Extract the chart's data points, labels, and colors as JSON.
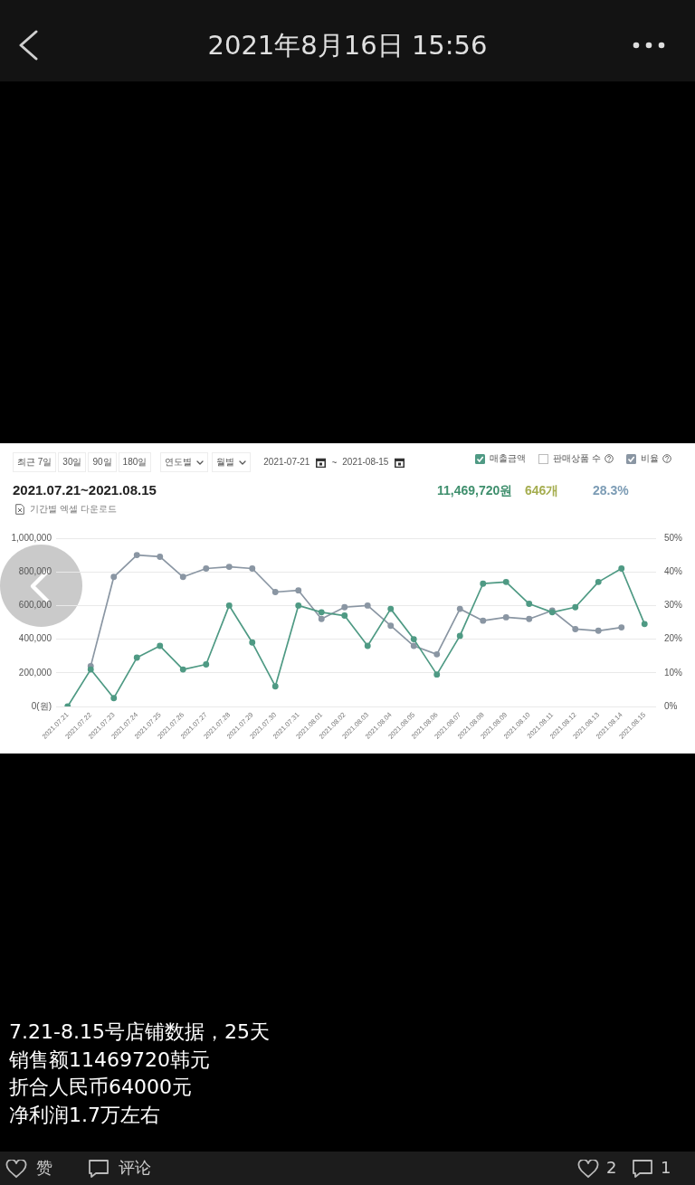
{
  "chart_data": {
    "type": "line",
    "title": "2021.07.21~2021.08.15",
    "categories": [
      "2021.07.21",
      "2021.07.22",
      "2021.07.23",
      "2021.07.24",
      "2021.07.25",
      "2021.07.26",
      "2021.07.27",
      "2021.07.28",
      "2021.07.29",
      "2021.07.30",
      "2021.07.31",
      "2021.08.01",
      "2021.08.02",
      "2021.08.03",
      "2021.08.04",
      "2021.08.05",
      "2021.08.06",
      "2021.08.07",
      "2021.08.08",
      "2021.08.09",
      "2021.08.10",
      "2021.08.11",
      "2021.08.12",
      "2021.08.13",
      "2021.08.14",
      "2021.08.15"
    ],
    "series": [
      {
        "name": "매출금액",
        "color": "#4f9a84",
        "axis": "y",
        "values": [
          0,
          220000,
          50000,
          290000,
          360000,
          220000,
          250000,
          600000,
          380000,
          120000,
          600000,
          560000,
          540000,
          360000,
          580000,
          400000,
          190000,
          420000,
          730000,
          740000,
          610000,
          560000,
          590000,
          740000,
          820000,
          490000
        ]
      },
      {
        "name": "비율",
        "color": "#8a96a3",
        "axis": "y2",
        "values": [
          null,
          12,
          38.5,
          45,
          44.5,
          38.5,
          41,
          41.5,
          41,
          34,
          34.5,
          26,
          29.5,
          30,
          24,
          18,
          15.5,
          29,
          25.5,
          26.5,
          26,
          28.5,
          23,
          22.5,
          23.5,
          null
        ]
      }
    ],
    "ylim": [
      0,
      1000000
    ],
    "yticks": [
      {
        "value": 0,
        "label": "0(원)"
      },
      {
        "value": 200000,
        "label": "200,000"
      },
      {
        "value": 400000,
        "label": "400,000"
      },
      {
        "value": 600000,
        "label": "600,000"
      },
      {
        "value": 800000,
        "label": "800,000"
      },
      {
        "value": 1000000,
        "label": "1,000,000"
      }
    ],
    "y2lim": [
      0,
      50
    ],
    "y2ticks": [
      {
        "value": 0,
        "label": "0%"
      },
      {
        "value": 10,
        "label": "10%"
      },
      {
        "value": 20,
        "label": "20%"
      },
      {
        "value": 30,
        "label": "30%"
      },
      {
        "value": 40,
        "label": "40%"
      },
      {
        "value": 50,
        "label": "50%"
      }
    ],
    "grid": "y",
    "legend": "top right",
    "marker": "circle",
    "line_style": "solid",
    "annotations": [
      "2021年8月16日 15:56",
      "최근 7일",
      "30일",
      "90일",
      "180일",
      "연도별",
      "월별",
      "2021-07-21",
      "~",
      "2021-08-15",
      "판매상품 수",
      "11,469,720원",
      "646개",
      "28.3%",
      "기간별 엑셀 다운로드",
      "7.21-8.15号店铺数据，25天",
      "销售额11469720韩元",
      "折合人民币64000元",
      "净利润1.7万左右",
      "赞",
      "评论",
      "2",
      "1"
    ]
  }
}
